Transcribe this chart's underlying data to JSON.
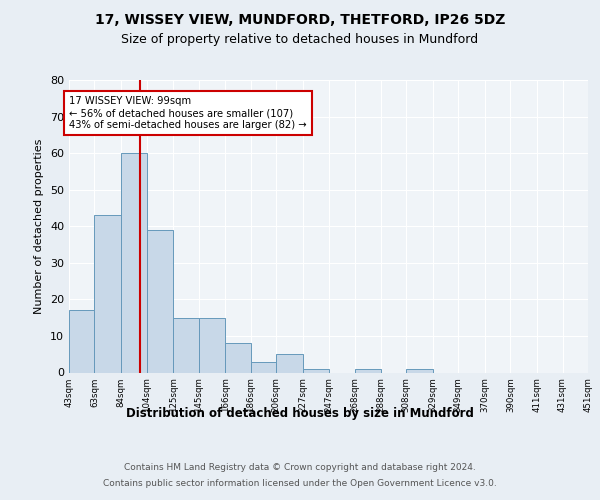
{
  "title1": "17, WISSEY VIEW, MUNDFORD, THETFORD, IP26 5DZ",
  "title2": "Size of property relative to detached houses in Mundford",
  "xlabel": "Distribution of detached houses by size in Mundford",
  "ylabel": "Number of detached properties",
  "footer1": "Contains HM Land Registry data © Crown copyright and database right 2024.",
  "footer2": "Contains public sector information licensed under the Open Government Licence v3.0.",
  "annotation_line1": "17 WISSEY VIEW: 99sqm",
  "annotation_line2": "← 56% of detached houses are smaller (107)",
  "annotation_line3": "43% of semi-detached houses are larger (82) →",
  "bar_values": [
    17,
    43,
    60,
    39,
    15,
    15,
    8,
    3,
    5,
    1,
    0,
    1,
    0,
    1,
    0,
    0,
    0,
    0,
    0,
    0
  ],
  "bin_labels": [
    "43sqm",
    "63sqm",
    "84sqm",
    "104sqm",
    "125sqm",
    "145sqm",
    "166sqm",
    "186sqm",
    "206sqm",
    "227sqm",
    "247sqm",
    "268sqm",
    "288sqm",
    "308sqm",
    "329sqm",
    "349sqm",
    "370sqm",
    "390sqm",
    "411sqm",
    "431sqm",
    "451sqm"
  ],
  "bin_edges": [
    43,
    63,
    84,
    104,
    125,
    145,
    166,
    186,
    206,
    227,
    247,
    268,
    288,
    308,
    329,
    349,
    370,
    390,
    411,
    431,
    451
  ],
  "property_size": 99,
  "bar_color": "#c8d8e8",
  "bar_edge_color": "#6699bb",
  "marker_line_color": "#cc0000",
  "annotation_box_color": "#cc0000",
  "ylim": [
    0,
    80
  ],
  "yticks": [
    0,
    10,
    20,
    30,
    40,
    50,
    60,
    70,
    80
  ],
  "background_color": "#e8eef4",
  "plot_bg_color": "#f0f4f8"
}
